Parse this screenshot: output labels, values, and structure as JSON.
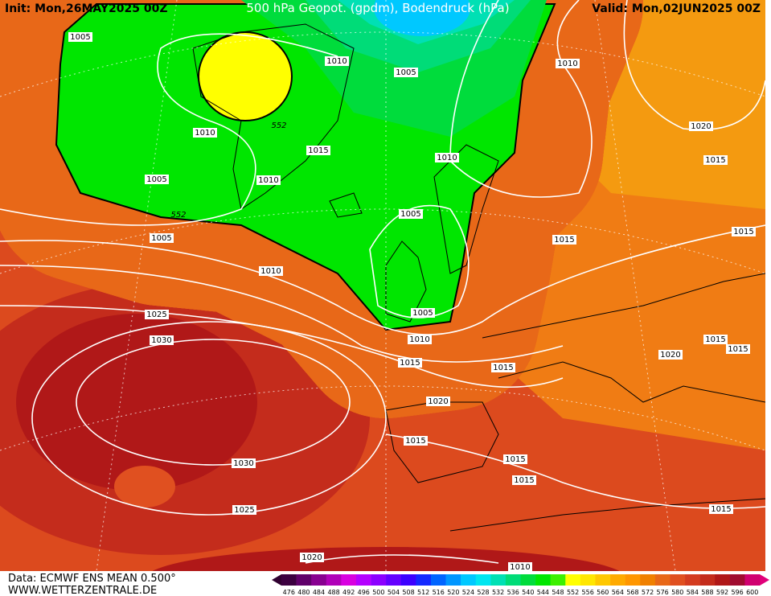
{
  "header": {
    "init": "Init: Mon,26MAY2025 00Z",
    "title": "500 hPa Geopot. (gpdm), Bodendruck (hPa)",
    "valid": "Valid: Mon,02JUN2025 00Z"
  },
  "footer": {
    "source": "Data: ECMWF ENS MEAN 0.500°",
    "site": "WWW.WETTERZENTRALE.DE"
  },
  "contour_labels": [
    "1005",
    "1010",
    "1005",
    "1010",
    "1020",
    "1015",
    "552",
    "1010",
    "1015",
    "1010",
    "1005",
    "1010",
    "552",
    "1005",
    "1005",
    "1015",
    "1015",
    "1010",
    "1005",
    "1025",
    "1030",
    "1010",
    "1015",
    "1015",
    "1015",
    "1020",
    "1015",
    "1020",
    "1015",
    "1015",
    "1015",
    "1030",
    "1025",
    "1015",
    "1020",
    "1010"
  ],
  "scale": {
    "values": [
      476,
      480,
      484,
      488,
      492,
      496,
      500,
      504,
      508,
      512,
      516,
      520,
      524,
      528,
      532,
      536,
      540,
      544,
      548,
      552,
      556,
      560,
      564,
      568,
      572,
      576,
      580,
      584,
      588,
      592,
      596,
      600
    ],
    "colors": [
      "#3c0040",
      "#60006a",
      "#880090",
      "#b000b8",
      "#d800e0",
      "#b400ff",
      "#8c00ff",
      "#6400ff",
      "#3c00ff",
      "#1428ff",
      "#0064ff",
      "#0096ff",
      "#00c8ff",
      "#00e6f0",
      "#00e0b4",
      "#00dc78",
      "#00dc3c",
      "#00e600",
      "#3cf000",
      "#ffff00",
      "#ffe600",
      "#ffc800",
      "#ffaa00",
      "#ff9600",
      "#f08000",
      "#e86818",
      "#e05020",
      "#d43c20",
      "#c42c1c",
      "#b01818",
      "#a00c30",
      "#d00070"
    ]
  }
}
